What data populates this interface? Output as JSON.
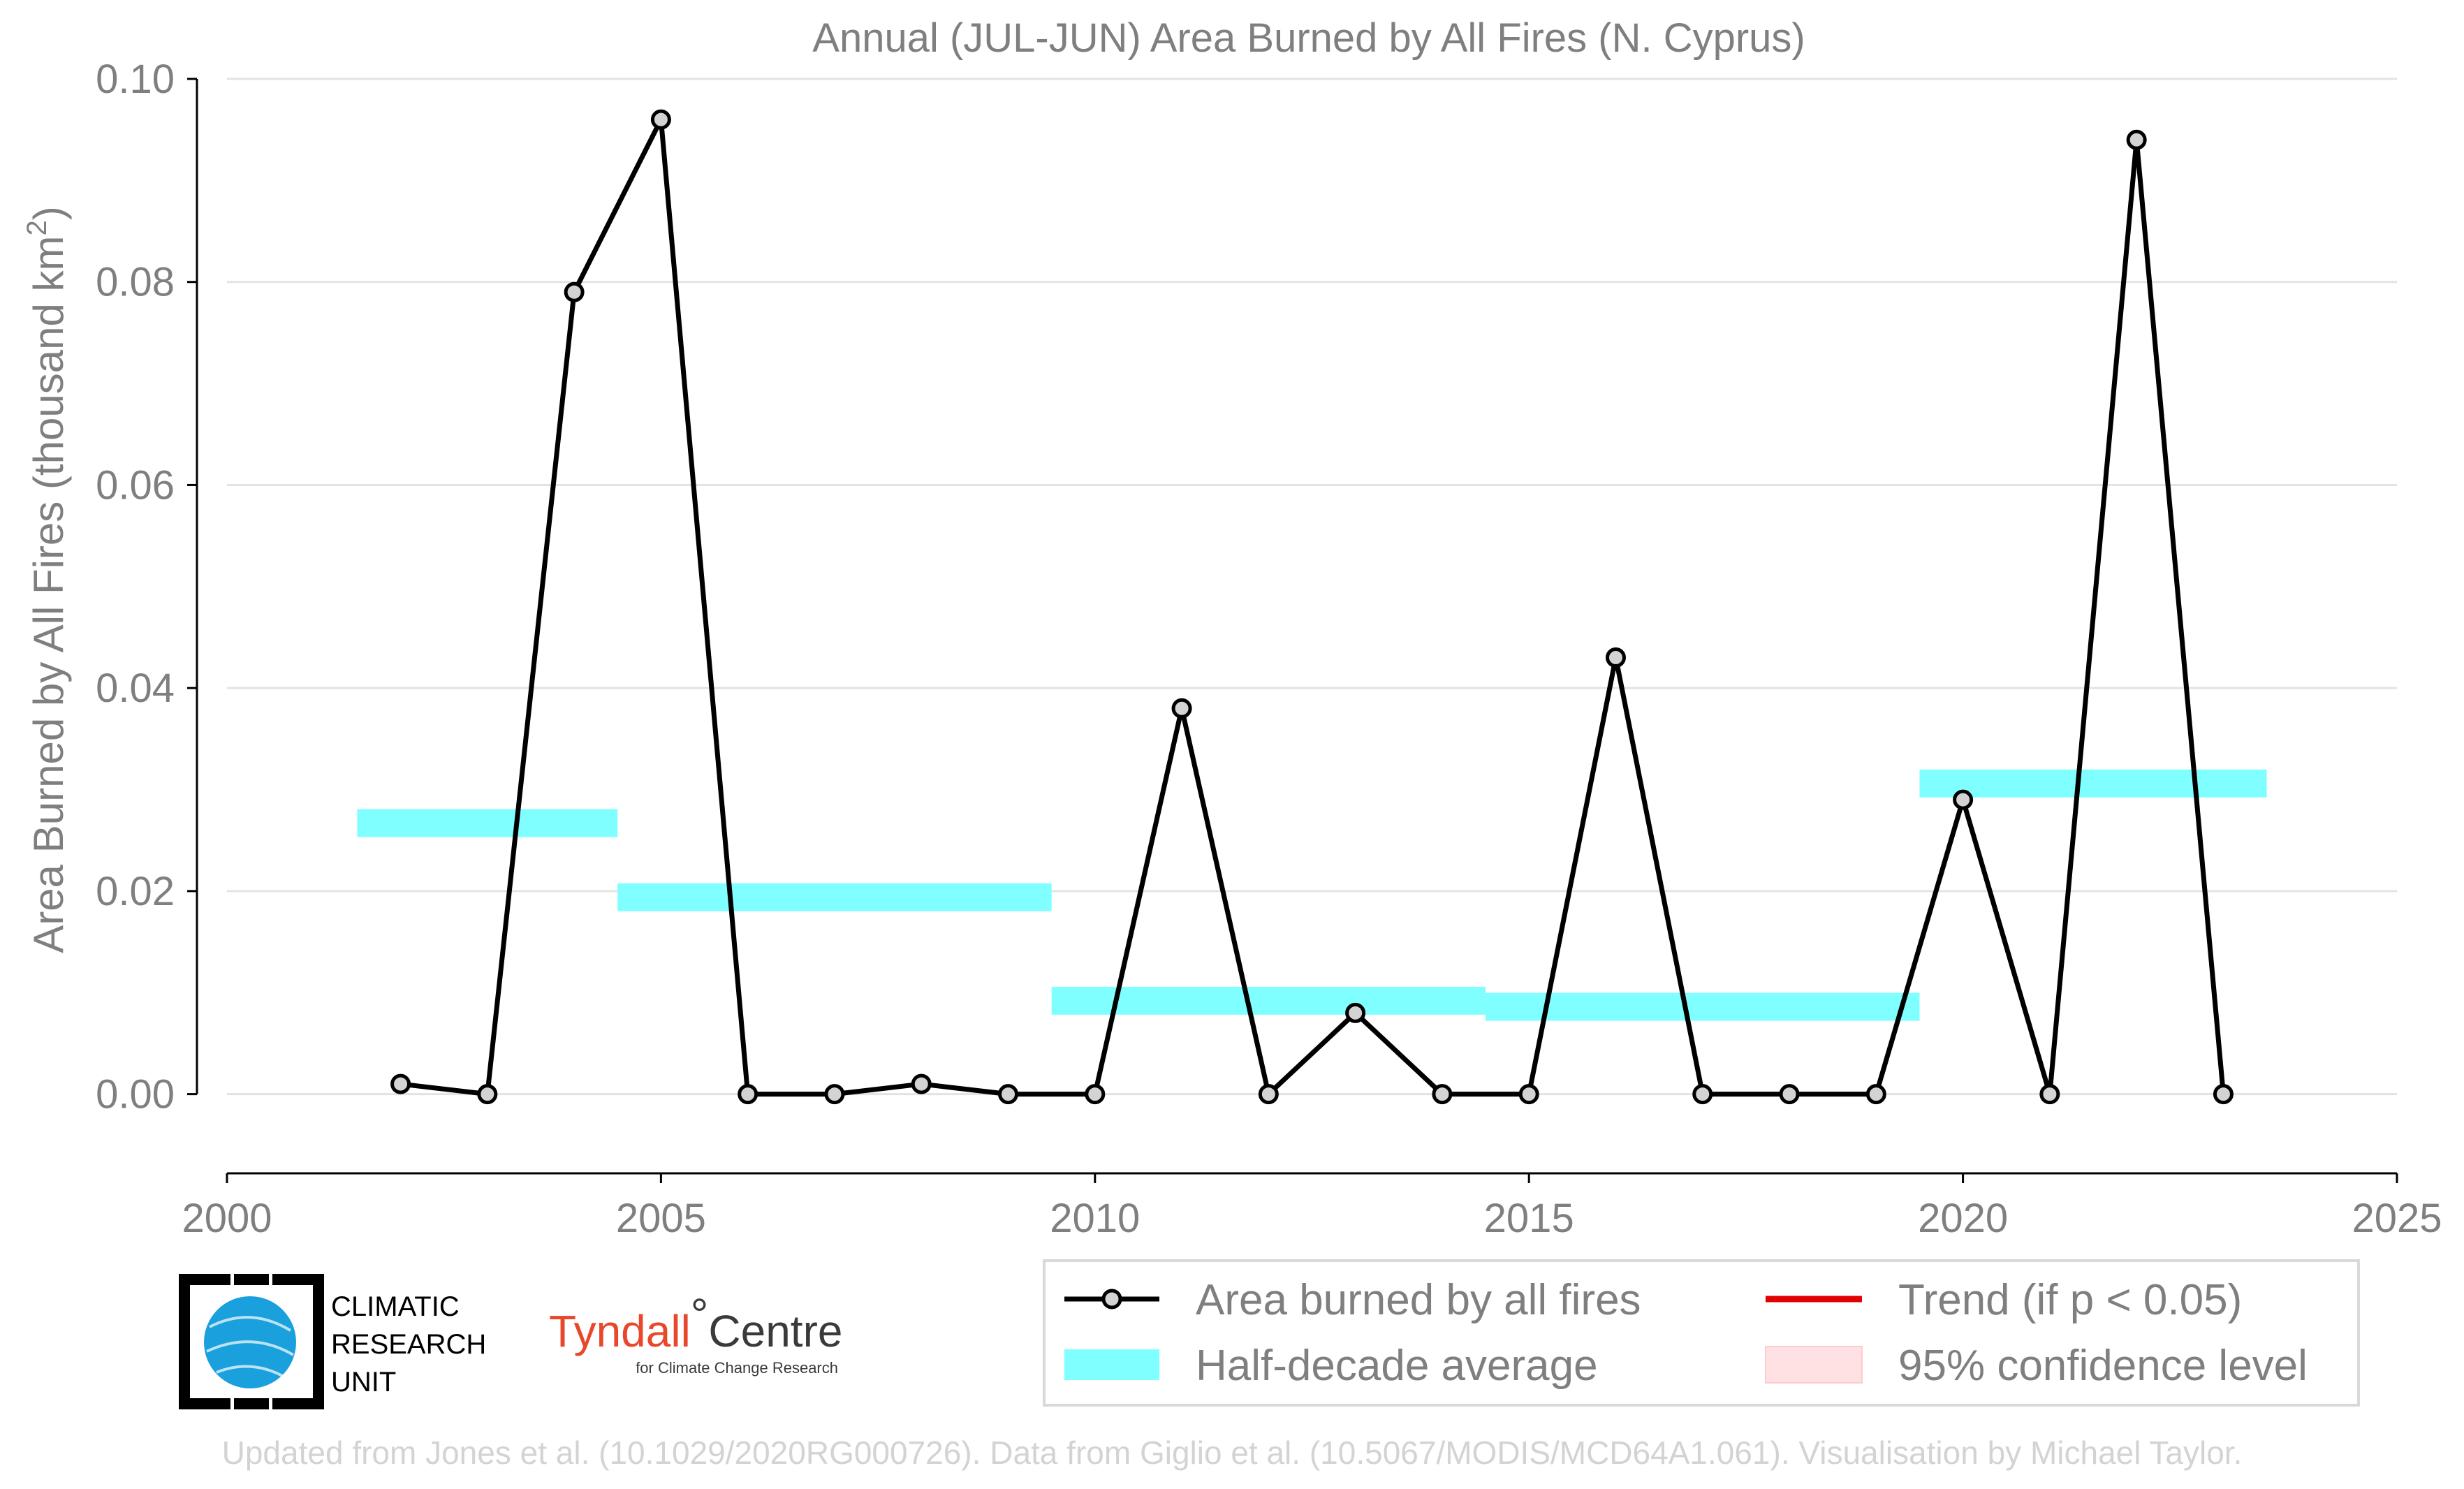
{
  "chart_data": {
    "type": "line",
    "title": "Annual (JUL-JUN) Area Burned by All Fires (N. Cyprus)",
    "xlabel": "",
    "ylabel": "Area Burned by All Fires (thousand km",
    "ylabel_sup": "2",
    "ylabel_close": ")",
    "xlim": [
      2000,
      2025
    ],
    "ylim": [
      -0.0078,
      0.1
    ],
    "x_ticks": [
      2000,
      2005,
      2010,
      2015,
      2020,
      2025
    ],
    "y_ticks": [
      0.0,
      0.02,
      0.04,
      0.06,
      0.08,
      0.1
    ],
    "y_tick_labels": [
      "0.00",
      "0.02",
      "0.04",
      "0.06",
      "0.08",
      "0.10"
    ],
    "grid": "horizontal",
    "series": [
      {
        "name": "Area burned by all fires",
        "color": "#000000",
        "marker_color": "#d3d3d3",
        "x": [
          2002,
          2003,
          2004,
          2005,
          2006,
          2007,
          2008,
          2009,
          2010,
          2011,
          2012,
          2013,
          2014,
          2015,
          2016,
          2017,
          2018,
          2019,
          2020,
          2021,
          2022,
          2023
        ],
        "y": [
          0.001,
          0.0,
          0.079,
          0.096,
          0.0,
          0.0,
          0.001,
          0.0,
          0.0,
          0.038,
          0.0,
          0.008,
          0.0,
          0.0,
          0.043,
          0.0,
          0.0,
          0.0,
          0.029,
          0.0,
          0.094,
          0.0
        ]
      }
    ],
    "half_decade_average": {
      "name": "Half-decade average",
      "color": "#7fffff",
      "segments": [
        {
          "x_start": 2001.5,
          "x_end": 2004.5,
          "value": 0.0267
        },
        {
          "x_start": 2004.5,
          "x_end": 2009.5,
          "value": 0.0194
        },
        {
          "x_start": 2009.5,
          "x_end": 2014.5,
          "value": 0.0092
        },
        {
          "x_start": 2014.5,
          "x_end": 2019.5,
          "value": 0.0086
        },
        {
          "x_start": 2019.5,
          "x_end": 2023.5,
          "value": 0.0306
        }
      ]
    },
    "legend": {
      "placement": "bottom-right",
      "entries": [
        {
          "label": "Area burned by all fires",
          "kind": "line-marker",
          "color": "#000000"
        },
        {
          "label": "Trend (if p < 0.05)",
          "kind": "line",
          "color": "#e00000"
        },
        {
          "label": "Half-decade average",
          "kind": "band",
          "color": "#7fffff"
        },
        {
          "label": "95% confidence level",
          "kind": "patch",
          "color": "#ffe0e3"
        }
      ]
    }
  },
  "logos": {
    "cru_lines": [
      "CLIMATIC",
      "RESEARCH",
      "UNIT"
    ],
    "tyndall_name": "Tyndall",
    "tyndall_degree": "°",
    "tyndall_centre": "Centre",
    "tyndall_sub": "for Climate Change Research"
  },
  "footer": "Updated from Jones et al. (10.1029/2020RG000726). Data from Giglio et al. (10.5067/MODIS/MCD64A1.061). Visualisation by Michael Taylor."
}
